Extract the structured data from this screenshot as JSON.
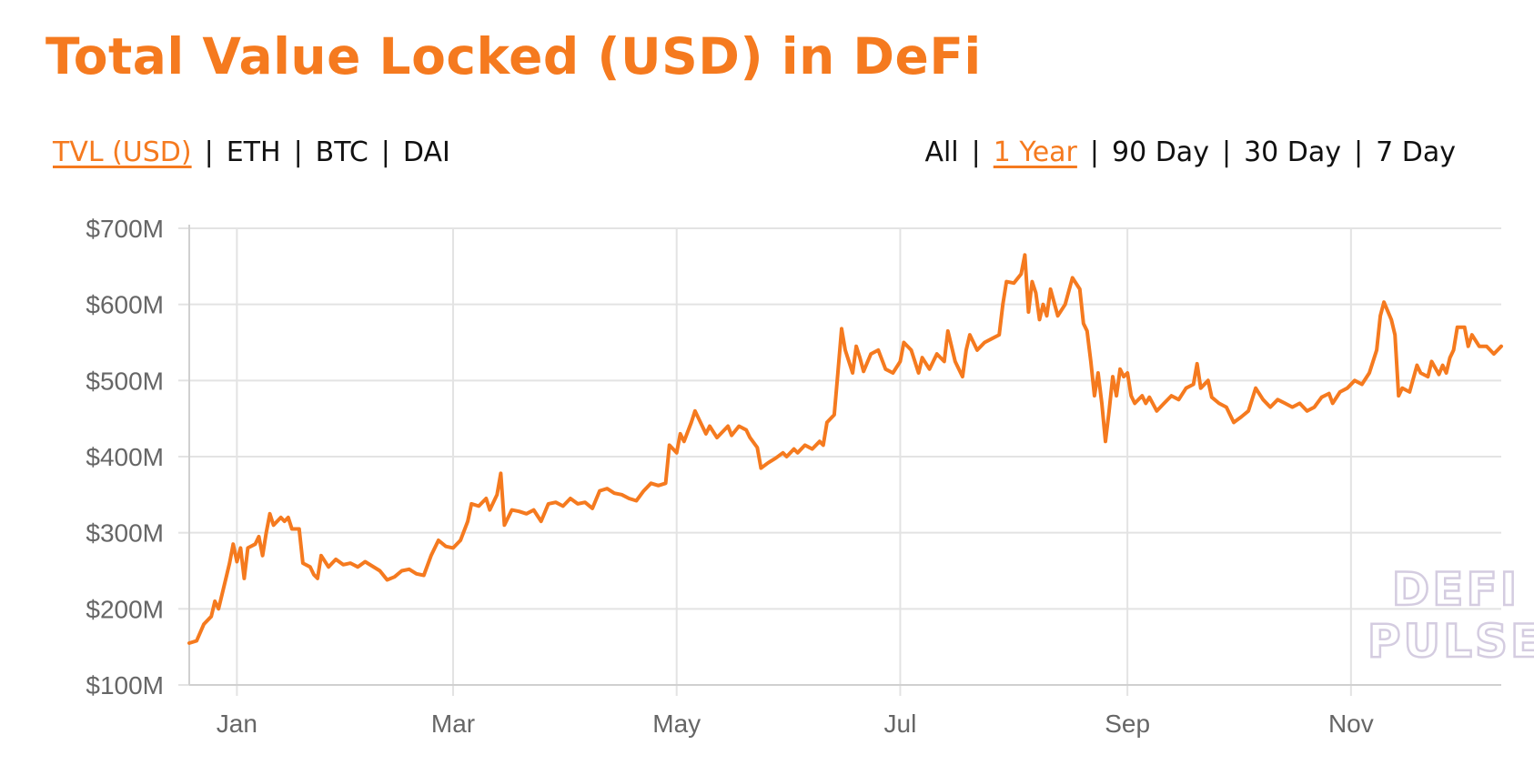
{
  "title": "Total Value Locked (USD) in DeFi",
  "metric_tabs": [
    {
      "label": "TVL (USD)",
      "active": true
    },
    {
      "label": "ETH",
      "active": false
    },
    {
      "label": "BTC",
      "active": false
    },
    {
      "label": "DAI",
      "active": false
    }
  ],
  "range_tabs": [
    {
      "label": "All",
      "active": false
    },
    {
      "label": "1 Year",
      "active": true
    },
    {
      "label": "90 Day",
      "active": false
    },
    {
      "label": "30 Day",
      "active": false
    },
    {
      "label": "7 Day",
      "active": false
    }
  ],
  "separator": "|",
  "watermark": {
    "line1": "DEFI",
    "line2": "PULSE"
  },
  "colors": {
    "accent": "#f57a1f",
    "grid": "#e3e3e3",
    "tick_text": "#666666"
  },
  "chart_data": {
    "type": "line",
    "ylim": [
      100,
      700
    ],
    "yticks": [
      100,
      200,
      300,
      400,
      500,
      600,
      700
    ],
    "ytick_labels": [
      "$100M",
      "$200M",
      "$300M",
      "$400M",
      "$500M",
      "$600M",
      "$700M"
    ],
    "x_range_days": [
      -13,
      345
    ],
    "xticks": [
      {
        "label": "Jan",
        "day": 0
      },
      {
        "label": "Mar",
        "day": 59
      },
      {
        "label": "May",
        "day": 120
      },
      {
        "label": "Jul",
        "day": 181
      },
      {
        "label": "Sep",
        "day": 243
      },
      {
        "label": "Nov",
        "day": 304
      }
    ],
    "series": [
      {
        "color": "#f57a1f",
        "points": [
          [
            -13,
            155
          ],
          [
            -11,
            158
          ],
          [
            -9,
            180
          ],
          [
            -7,
            190
          ],
          [
            -6,
            210
          ],
          [
            -5,
            200
          ],
          [
            -3,
            240
          ],
          [
            -2,
            260
          ],
          [
            -1,
            285
          ],
          [
            0,
            262
          ],
          [
            1,
            280
          ],
          [
            2,
            240
          ],
          [
            3,
            280
          ],
          [
            5,
            285
          ],
          [
            6,
            295
          ],
          [
            7,
            270
          ],
          [
            8,
            300
          ],
          [
            9,
            325
          ],
          [
            10,
            310
          ],
          [
            12,
            320
          ],
          [
            13,
            315
          ],
          [
            14,
            320
          ],
          [
            15,
            305
          ],
          [
            17,
            305
          ],
          [
            18,
            260
          ],
          [
            20,
            255
          ],
          [
            21,
            245
          ],
          [
            22,
            240
          ],
          [
            23,
            270
          ],
          [
            25,
            255
          ],
          [
            27,
            265
          ],
          [
            29,
            258
          ],
          [
            31,
            260
          ],
          [
            33,
            255
          ],
          [
            35,
            262
          ],
          [
            37,
            256
          ],
          [
            39,
            250
          ],
          [
            41,
            238
          ],
          [
            43,
            242
          ],
          [
            45,
            250
          ],
          [
            47,
            252
          ],
          [
            49,
            246
          ],
          [
            51,
            244
          ],
          [
            53,
            270
          ],
          [
            55,
            290
          ],
          [
            57,
            282
          ],
          [
            59,
            280
          ],
          [
            61,
            290
          ],
          [
            63,
            315
          ],
          [
            64,
            338
          ],
          [
            66,
            335
          ],
          [
            68,
            345
          ],
          [
            69,
            330
          ],
          [
            71,
            350
          ],
          [
            72,
            378
          ],
          [
            73,
            310
          ],
          [
            75,
            330
          ],
          [
            77,
            328
          ],
          [
            79,
            325
          ],
          [
            81,
            330
          ],
          [
            83,
            315
          ],
          [
            85,
            338
          ],
          [
            87,
            340
          ],
          [
            89,
            335
          ],
          [
            91,
            345
          ],
          [
            93,
            338
          ],
          [
            95,
            340
          ],
          [
            97,
            332
          ],
          [
            99,
            355
          ],
          [
            101,
            358
          ],
          [
            103,
            352
          ],
          [
            105,
            350
          ],
          [
            107,
            345
          ],
          [
            109,
            342
          ],
          [
            111,
            355
          ],
          [
            113,
            365
          ],
          [
            115,
            362
          ],
          [
            117,
            365
          ],
          [
            118,
            415
          ],
          [
            120,
            405
          ],
          [
            121,
            430
          ],
          [
            122,
            420
          ],
          [
            124,
            445
          ],
          [
            125,
            460
          ],
          [
            126,
            450
          ],
          [
            128,
            430
          ],
          [
            129,
            440
          ],
          [
            131,
            425
          ],
          [
            132,
            430
          ],
          [
            134,
            440
          ],
          [
            135,
            428
          ],
          [
            137,
            440
          ],
          [
            139,
            435
          ],
          [
            140,
            425
          ],
          [
            142,
            412
          ],
          [
            143,
            385
          ],
          [
            145,
            392
          ],
          [
            147,
            398
          ],
          [
            149,
            405
          ],
          [
            150,
            400
          ],
          [
            152,
            410
          ],
          [
            153,
            405
          ],
          [
            155,
            415
          ],
          [
            157,
            410
          ],
          [
            159,
            420
          ],
          [
            160,
            415
          ],
          [
            161,
            445
          ],
          [
            163,
            455
          ],
          [
            164,
            510
          ],
          [
            165,
            568
          ],
          [
            166,
            540
          ],
          [
            168,
            510
          ],
          [
            169,
            545
          ],
          [
            170,
            530
          ],
          [
            171,
            512
          ],
          [
            173,
            535
          ],
          [
            175,
            540
          ],
          [
            177,
            515
          ],
          [
            179,
            510
          ],
          [
            181,
            525
          ],
          [
            182,
            550
          ],
          [
            184,
            540
          ],
          [
            186,
            510
          ],
          [
            187,
            530
          ],
          [
            189,
            515
          ],
          [
            191,
            535
          ],
          [
            193,
            525
          ],
          [
            194,
            565
          ],
          [
            196,
            525
          ],
          [
            198,
            505
          ],
          [
            199,
            540
          ],
          [
            200,
            560
          ],
          [
            202,
            540
          ],
          [
            204,
            550
          ],
          [
            206,
            555
          ],
          [
            208,
            560
          ],
          [
            209,
            600
          ],
          [
            210,
            630
          ],
          [
            212,
            628
          ],
          [
            214,
            640
          ],
          [
            215,
            665
          ],
          [
            216,
            590
          ],
          [
            217,
            630
          ],
          [
            218,
            615
          ],
          [
            219,
            580
          ],
          [
            220,
            600
          ],
          [
            221,
            585
          ],
          [
            222,
            620
          ],
          [
            224,
            585
          ],
          [
            226,
            600
          ],
          [
            228,
            635
          ],
          [
            230,
            620
          ],
          [
            231,
            575
          ],
          [
            232,
            565
          ],
          [
            233,
            525
          ],
          [
            234,
            480
          ],
          [
            235,
            510
          ],
          [
            236,
            470
          ],
          [
            237,
            420
          ],
          [
            238,
            460
          ],
          [
            239,
            505
          ],
          [
            240,
            480
          ],
          [
            241,
            515
          ],
          [
            242,
            505
          ],
          [
            243,
            510
          ],
          [
            244,
            480
          ],
          [
            245,
            470
          ],
          [
            247,
            480
          ],
          [
            248,
            470
          ],
          [
            249,
            478
          ],
          [
            251,
            460
          ],
          [
            253,
            470
          ],
          [
            255,
            480
          ],
          [
            257,
            475
          ],
          [
            259,
            490
          ],
          [
            261,
            495
          ],
          [
            262,
            522
          ],
          [
            263,
            490
          ],
          [
            265,
            500
          ],
          [
            266,
            478
          ],
          [
            268,
            470
          ],
          [
            270,
            465
          ],
          [
            272,
            445
          ],
          [
            274,
            452
          ],
          [
            276,
            460
          ],
          [
            278,
            490
          ],
          [
            280,
            475
          ],
          [
            282,
            465
          ],
          [
            284,
            475
          ],
          [
            286,
            470
          ],
          [
            288,
            465
          ],
          [
            290,
            470
          ],
          [
            292,
            460
          ],
          [
            294,
            465
          ],
          [
            296,
            478
          ],
          [
            298,
            483
          ],
          [
            299,
            470
          ],
          [
            301,
            485
          ],
          [
            303,
            490
          ],
          [
            305,
            500
          ],
          [
            307,
            495
          ],
          [
            309,
            510
          ],
          [
            311,
            540
          ],
          [
            312,
            585
          ],
          [
            313,
            603
          ],
          [
            315,
            580
          ],
          [
            316,
            560
          ],
          [
            317,
            480
          ],
          [
            318,
            490
          ],
          [
            320,
            485
          ],
          [
            322,
            520
          ],
          [
            323,
            510
          ],
          [
            325,
            505
          ],
          [
            326,
            525
          ],
          [
            328,
            508
          ],
          [
            329,
            520
          ],
          [
            330,
            510
          ],
          [
            331,
            530
          ],
          [
            332,
            540
          ],
          [
            333,
            570
          ],
          [
            335,
            570
          ],
          [
            336,
            545
          ],
          [
            337,
            560
          ],
          [
            339,
            545
          ],
          [
            341,
            545
          ],
          [
            343,
            535
          ],
          [
            345,
            545
          ]
        ]
      }
    ]
  }
}
